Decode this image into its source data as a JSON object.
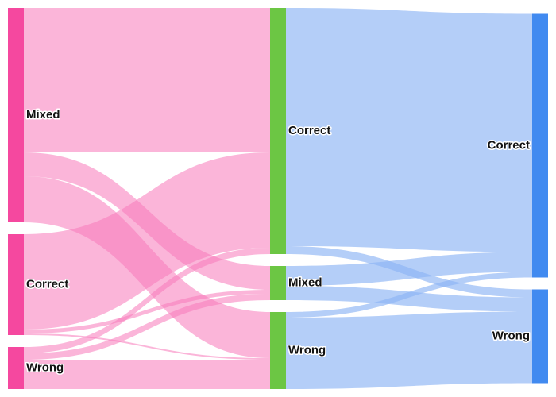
{
  "chart_data": {
    "type": "sankey",
    "nodes": [
      {
        "label": "Mixed",
        "color": "#f5489f"
      },
      {
        "label": "Correct",
        "color": "#f5489f"
      },
      {
        "label": "Wrong",
        "color": "#f5489f"
      },
      {
        "label": "Correct",
        "color": "#6cc644"
      },
      {
        "label": "Mixed",
        "color": "#6cc644"
      },
      {
        "label": "Wrong",
        "color": "#6cc644"
      },
      {
        "label": "Correct",
        "color": "#418af0"
      },
      {
        "label": "Wrong",
        "color": "#418af0"
      }
    ],
    "links": [
      {
        "source": 0,
        "target": 3,
        "value": 182,
        "color": "rgba(247,120,185,0.55)"
      },
      {
        "source": 0,
        "target": 4,
        "value": 30,
        "color": "rgba(247,120,185,0.55)"
      },
      {
        "source": 0,
        "target": 5,
        "value": 58,
        "color": "rgba(247,120,185,0.55)"
      },
      {
        "source": 1,
        "target": 3,
        "value": 120,
        "color": "rgba(247,120,185,0.55)"
      },
      {
        "source": 1,
        "target": 4,
        "value": 5,
        "color": "rgba(247,120,185,0.55)"
      },
      {
        "source": 1,
        "target": 5,
        "value": 2,
        "color": "rgba(247,120,185,0.55)"
      },
      {
        "source": 2,
        "target": 3,
        "value": 8,
        "color": "rgba(247,120,185,0.55)"
      },
      {
        "source": 2,
        "target": 4,
        "value": 8,
        "color": "rgba(247,120,185,0.55)"
      },
      {
        "source": 2,
        "target": 5,
        "value": 37,
        "color": "rgba(247,120,185,0.55)"
      },
      {
        "source": 3,
        "target": 6,
        "value": 300,
        "color": "rgba(140,180,245,0.65)"
      },
      {
        "source": 3,
        "target": 7,
        "value": 10,
        "color": "rgba(140,180,245,0.65)"
      },
      {
        "source": 4,
        "target": 6,
        "value": 25,
        "color": "rgba(140,180,245,0.65)"
      },
      {
        "source": 4,
        "target": 7,
        "value": 18,
        "color": "rgba(140,180,245,0.65)"
      },
      {
        "source": 5,
        "target": 6,
        "value": 7,
        "color": "rgba(140,180,245,0.65)"
      },
      {
        "source": 5,
        "target": 7,
        "value": 90,
        "color": "rgba(140,180,245,0.65)"
      }
    ]
  }
}
